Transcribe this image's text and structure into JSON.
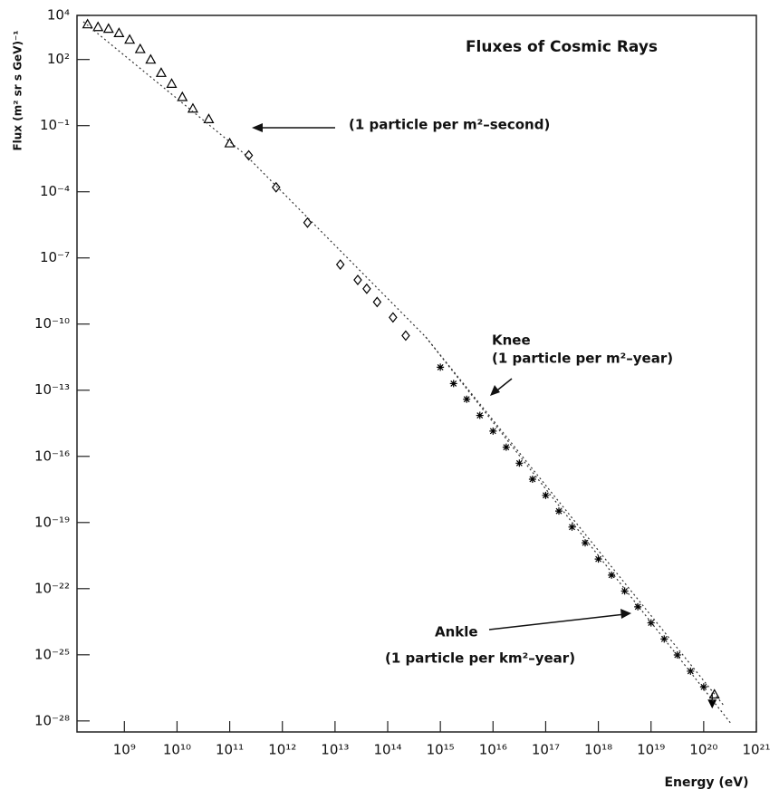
{
  "chart_data": {
    "type": "scatter",
    "title": "Fluxes of Cosmic Rays",
    "x_label": "Energy (eV)",
    "y_label": "Flux (m² sr s GeV)⁻¹",
    "annotations": [
      "(1 particle per m²–second)",
      "Knee",
      "(1 particle per m²–year)",
      "Ankle",
      "(1 particle per km²–year)"
    ],
    "log_x": true,
    "log_y": true,
    "xlim": [
      126000000.0,
      1e+21
    ],
    "ylim": [
      3.16e-29,
      10000.0
    ],
    "xticks": [
      {
        "value": 1000000000.0,
        "label": "10⁹"
      },
      {
        "value": 10000000000.0,
        "label": "10¹⁰"
      },
      {
        "value": 100000000000.0,
        "label": "10¹¹"
      },
      {
        "value": 1000000000000.0,
        "label": "10¹²"
      },
      {
        "value": 10000000000000.0,
        "label": "10¹³"
      },
      {
        "value": 100000000000000.0,
        "label": "10¹⁴"
      },
      {
        "value": 1000000000000000.0,
        "label": "10¹⁵"
      },
      {
        "value": 1e+16,
        "label": "10¹⁶"
      },
      {
        "value": 1e+17,
        "label": "10¹⁷"
      },
      {
        "value": 1e+18,
        "label": "10¹⁸"
      },
      {
        "value": 1e+19,
        "label": "10¹⁹"
      },
      {
        "value": 1e+20,
        "label": "10²⁰"
      },
      {
        "value": 1e+21,
        "label": "10²¹"
      }
    ],
    "yticks": [
      {
        "value": 10000.0,
        "label": "10⁴"
      },
      {
        "value": 100.0,
        "label": "10²"
      },
      {
        "value": 0.1,
        "label": "10⁻¹"
      },
      {
        "value": 0.0001,
        "label": "10⁻⁴"
      },
      {
        "value": 1e-07,
        "label": "10⁻⁷"
      },
      {
        "value": 1e-10,
        "label": "10⁻¹⁰"
      },
      {
        "value": 1e-13,
        "label": "10⁻¹³"
      },
      {
        "value": 1e-16,
        "label": "10⁻¹⁶"
      },
      {
        "value": 1e-19,
        "label": "10⁻¹⁹"
      },
      {
        "value": 1e-22,
        "label": "10⁻²²"
      },
      {
        "value": 1e-25,
        "label": "10⁻²⁵"
      },
      {
        "value": 1e-28,
        "label": "10⁻²⁸"
      }
    ],
    "series": [
      {
        "marker": "triangle",
        "color": "#000000",
        "x": [
          200000000.0,
          316000000.0,
          500000000.0,
          790000000.0,
          1260000000.0,
          2000000000.0,
          3160000000.0,
          5000000000.0,
          7900000000.0,
          12600000000.0,
          20000000000.0,
          40000000000.0,
          100000000000.0
        ],
        "values": [
          4000,
          3000,
          2500,
          1600,
          800,
          300,
          100,
          25,
          8,
          2,
          0.6,
          0.2,
          0.016
        ]
      },
      {
        "marker": "diamond",
        "color": "#000000",
        "x": [
          230000000000.0,
          760000000000.0,
          3000000000000.0,
          12600000000000.0,
          27000000000000.0,
          40000000000000.0,
          63000000000000.0,
          126000000000000.0,
          220000000000000.0
        ],
        "values": [
          0.0045,
          0.00016,
          4e-06,
          5e-08,
          1e-08,
          4e-09,
          1e-09,
          2e-10,
          3e-11
        ]
      },
      {
        "marker": "star",
        "color": "#000000",
        "x": [
          1000000000000000.0,
          1780000000000000.0,
          3160000000000000.0,
          5620000000000000.0,
          1e+16,
          1.78e+16,
          3.16e+16,
          5.62e+16,
          1e+17,
          1.78e+17,
          3.16e+17,
          5.62e+17,
          1e+18,
          1.78e+18,
          3.16e+18,
          5.62e+18,
          1e+19,
          1.78e+19,
          3.16e+19,
          5.62e+19,
          1e+20
        ],
        "values": [
          1.1e-12,
          2e-13,
          3.9e-14,
          7.2e-15,
          1.4e-15,
          2.6e-16,
          4.9e-17,
          9.2e-18,
          1.7e-18,
          3.3e-19,
          6.2e-20,
          1.2e-20,
          2.2e-21,
          4.1e-22,
          7.8e-23,
          1.5e-23,
          2.8e-24,
          5.2e-25,
          9.8e-26,
          1.8e-26,
          3.5e-27
        ]
      },
      {
        "marker": "triangle",
        "color": "#000000",
        "x": [
          1.6e+20
        ],
        "values": [
          1.6e-27
        ]
      },
      {
        "marker": "arrow-down",
        "color": "#000000",
        "x": [
          1.45e+20
        ],
        "values": [
          5e-28
        ]
      }
    ]
  }
}
